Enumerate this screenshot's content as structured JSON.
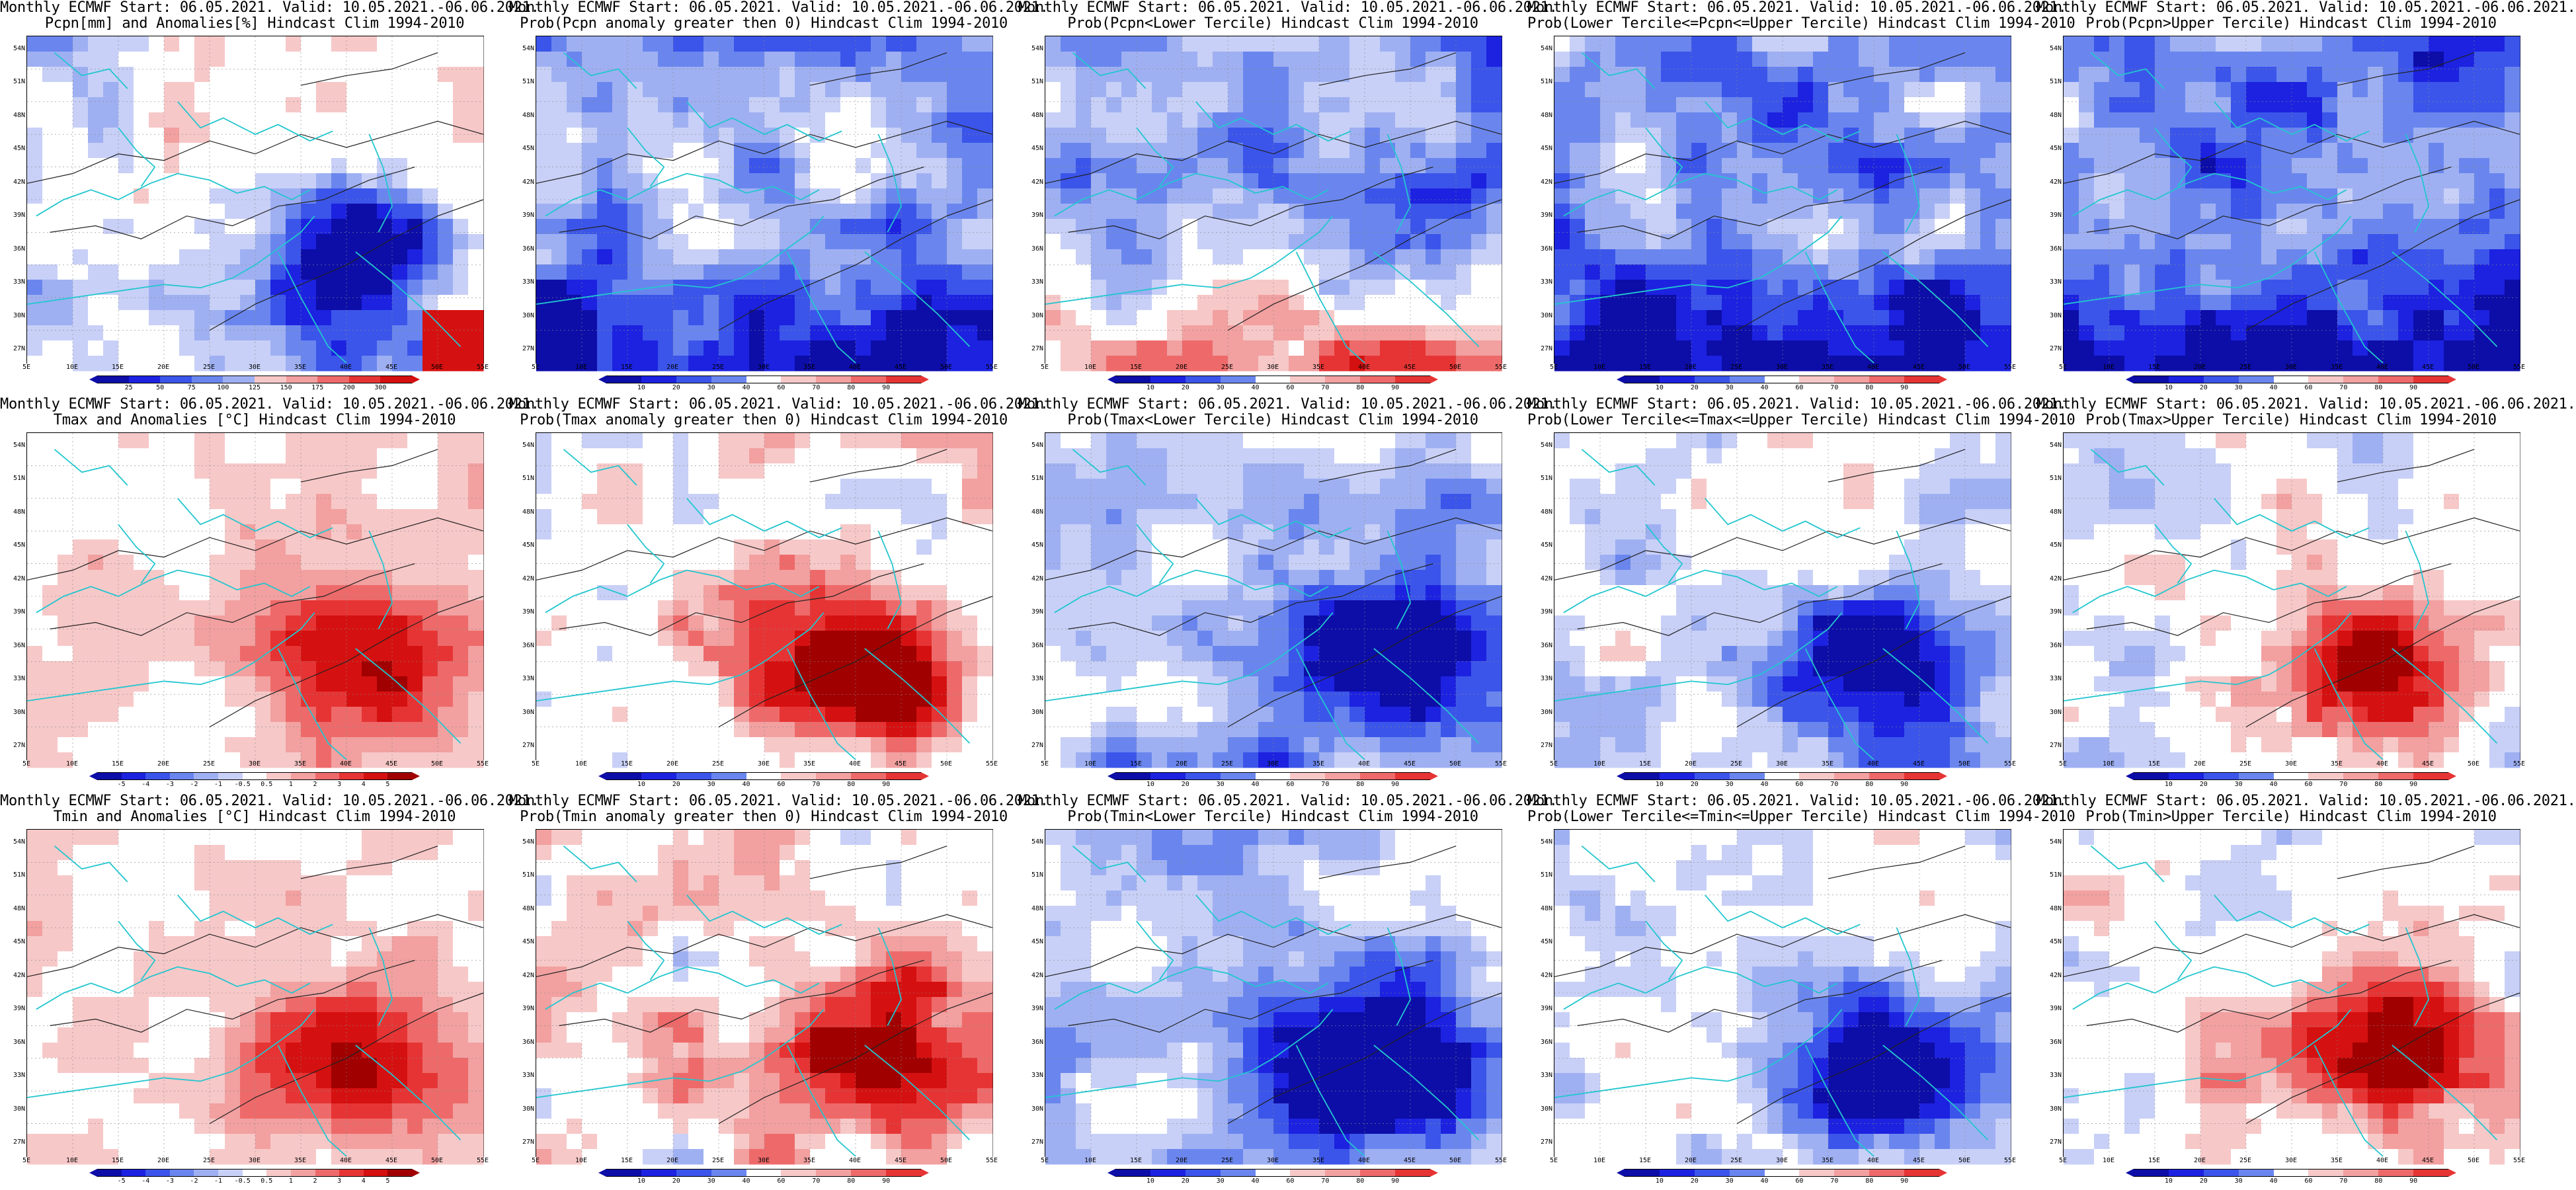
{
  "lat_labels": [
    "54N",
    "51N",
    "48N",
    "45N",
    "42N",
    "39N",
    "36N",
    "33N",
    "30N",
    "27N"
  ],
  "lon_labels": [
    "5E",
    "10E",
    "15E",
    "20E",
    "25E",
    "30E",
    "35E",
    "40E",
    "45E",
    "50E",
    "55E"
  ],
  "colors": {
    "blues": [
      "#0d0da8",
      "#1c22e0",
      "#3b55ea",
      "#6a86ee",
      "#9fb0f2",
      "#c8d0f7"
    ],
    "reds": [
      "#f7c8c8",
      "#f2a0a0",
      "#ee6a6a",
      "#e63434",
      "#d51010",
      "#a00000"
    ],
    "coast": "#23c6cf",
    "contour": "#222222"
  },
  "colorbars": {
    "precip_anom": [
      "25",
      "50",
      "75",
      "100",
      "125",
      "150",
      "175",
      "200",
      "300"
    ],
    "prob": [
      "10",
      "20",
      "30",
      "40",
      "60",
      "70",
      "80",
      "90"
    ],
    "temp_anom": [
      "-5",
      "-4",
      "-3",
      "-2",
      "-1",
      "-0.5",
      "0.5",
      "1",
      "2",
      "3",
      "4",
      "5"
    ]
  },
  "panels": [
    {
      "title1": "Monthly ECMWF Start: 06.05.2021. Valid: 10.05.2021.-06.06.2021.",
      "title2": "Pcpn[mm] and Anomalies[%] Hindcast Clim 1994-2010",
      "cbar": "precip_anom",
      "scheme": "precip",
      "bias": 0.0
    },
    {
      "title1": "Monthly ECMWF Start: 06.05.2021. Valid: 10.05.2021.-06.06.2021.",
      "title2": "Prob(Pcpn anomaly greater then 0) Hindcast Clim 1994-2010",
      "cbar": "prob",
      "scheme": "probblue",
      "bias": -0.25
    },
    {
      "title1": "Monthly ECMWF Start: 06.05.2021. Valid: 10.05.2021.-06.06.2021.",
      "title2": "Prob(Pcpn<Lower Tercile) Hindcast Clim 1994-2010",
      "cbar": "prob",
      "scheme": "lowtercile",
      "bias": 0.0
    },
    {
      "title1": "Monthly ECMWF Start: 06.05.2021. Valid: 10.05.2021.-06.06.2021.",
      "title2": "Prob(Lower Tercile<=Pcpn<=Upper Tercile) Hindcast Clim 1994-2010",
      "cbar": "prob",
      "scheme": "probblue",
      "bias": -0.35
    },
    {
      "title1": "Monthly ECMWF Start: 06.05.2021. Valid: 10.05.2021.-06.06.2021.",
      "title2": "Prob(Pcpn>Upper Tercile) Hindcast Clim 1994-2010",
      "cbar": "prob",
      "scheme": "probblue",
      "bias": -0.4
    },
    {
      "title1": "Monthly ECMWF Start: 06.05.2021. Valid: 10.05.2021.-06.06.2021.",
      "title2": "Tmax and Anomalies [°C] Hindcast Clim 1994-2010",
      "cbar": "temp_anom",
      "scheme": "tempanom",
      "bias": 0.1
    },
    {
      "title1": "Monthly ECMWF Start: 06.05.2021. Valid: 10.05.2021.-06.06.2021.",
      "title2": "Prob(Tmax anomaly greater then 0) Hindcast Clim 1994-2010",
      "cbar": "prob",
      "scheme": "warm",
      "bias": 0.2
    },
    {
      "title1": "Monthly ECMWF Start: 06.05.2021. Valid: 10.05.2021.-06.06.2021.",
      "title2": "Prob(Tmax<Lower Tercile) Hindcast Clim 1994-2010",
      "cbar": "prob",
      "scheme": "cold",
      "bias": -0.3
    },
    {
      "title1": "Monthly ECMWF Start: 06.05.2021. Valid: 10.05.2021.-06.06.2021.",
      "title2": "Prob(Lower Tercile<=Tmax<=Upper Tercile) Hindcast Clim 1994-2010",
      "cbar": "prob",
      "scheme": "cold",
      "bias": -0.15
    },
    {
      "title1": "Monthly ECMWF Start: 06.05.2021. Valid: 10.05.2021.-06.06.2021.",
      "title2": "Prob(Tmax>Upper Tercile) Hindcast Clim 1994-2010",
      "cbar": "prob",
      "scheme": "warm",
      "bias": 0.05
    },
    {
      "title1": "Monthly ECMWF Start: 06.05.2021. Valid: 10.05.2021.-06.06.2021.",
      "title2": "Tmin and Anomalies [°C] Hindcast Clim 1994-2010",
      "cbar": "temp_anom",
      "scheme": "tempanom",
      "bias": 0.05
    },
    {
      "title1": "Monthly ECMWF Start: 06.05.2021. Valid: 10.05.2021.-06.06.2021.",
      "title2": "Prob(Tmin anomaly greater then 0) Hindcast Clim 1994-2010",
      "cbar": "prob",
      "scheme": "warm",
      "bias": 0.25
    },
    {
      "title1": "Monthly ECMWF Start: 06.05.2021. Valid: 10.05.2021.-06.06.2021.",
      "title2": "Prob(Tmin<Lower Tercile) Hindcast Clim 1994-2010",
      "cbar": "prob",
      "scheme": "cold",
      "bias": -0.3
    },
    {
      "title1": "Monthly ECMWF Start: 06.05.2021. Valid: 10.05.2021.-06.06.2021.",
      "title2": "Prob(Lower Tercile<=Tmin<=Upper Tercile) Hindcast Clim 1994-2010",
      "cbar": "prob",
      "scheme": "cold",
      "bias": -0.15
    },
    {
      "title1": "Monthly ECMWF Start: 06.05.2021. Valid: 10.05.2021.-06.06.2021.",
      "title2": "Prob(Tmin>Upper Tercile) Hindcast Clim 1994-2010",
      "cbar": "prob",
      "scheme": "warm",
      "bias": 0.1
    }
  ]
}
